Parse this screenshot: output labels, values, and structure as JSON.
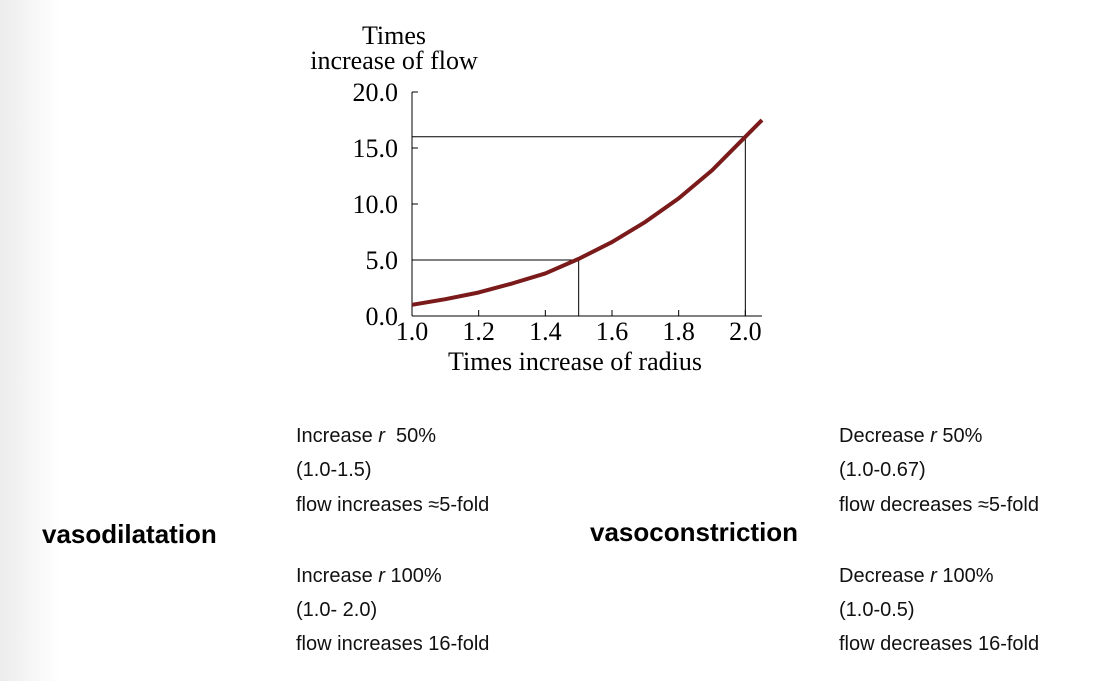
{
  "chart_data": {
    "type": "line",
    "y_label_lines": [
      "Times",
      "increase of flow"
    ],
    "x_label": "Times increase of radius",
    "x": [
      1.0,
      1.1,
      1.2,
      1.3,
      1.4,
      1.5,
      1.6,
      1.7,
      1.8,
      1.9,
      2.0,
      2.05
    ],
    "series": [
      {
        "color": "#7a1a1a",
        "values": [
          1.0,
          1.5,
          2.1,
          2.9,
          3.8,
          5.1,
          6.6,
          8.4,
          10.5,
          13.0,
          16.0,
          17.5
        ]
      }
    ],
    "xlim": [
      1.0,
      2.05
    ],
    "ylim": [
      0,
      20
    ],
    "xticks": [
      {
        "value": 1.0,
        "label": "1.0"
      },
      {
        "value": 1.2,
        "label": "1.2"
      },
      {
        "value": 1.4,
        "label": "1.4"
      },
      {
        "value": 1.6,
        "label": "1.6"
      },
      {
        "value": 1.8,
        "label": "1.8"
      },
      {
        "value": 2.0,
        "label": "2.0"
      }
    ],
    "yticks": [
      {
        "value": 0,
        "label": "0.0"
      },
      {
        "value": 5,
        "label": "5.0"
      },
      {
        "value": 10,
        "label": "10.0"
      },
      {
        "value": 15,
        "label": "15.0"
      },
      {
        "value": 20,
        "label": "20.0"
      }
    ],
    "reference_points": [
      {
        "x": 1.5,
        "y": 5
      },
      {
        "x": 2.0,
        "y": 16
      }
    ]
  },
  "panels": [
    {
      "heading": "vasodilatation",
      "lines": [
        [
          "Increase ",
          "r",
          "  50%"
        ],
        [
          "(1.0-1.5)"
        ],
        [
          "flow increases ≈5-fold"
        ],
        [
          "Increase ",
          "r",
          " 100%"
        ],
        [
          "(1.0- 2.0)"
        ],
        [
          "flow increases 16-fold"
        ]
      ]
    },
    {
      "heading": "vasoconstriction",
      "lines": [
        [
          "Decrease ",
          "r",
          " 50%"
        ],
        [
          "(1.0-0.67)"
        ],
        [
          "flow decreases ≈5-fold"
        ],
        [
          "Decrease ",
          "r",
          " 100%"
        ],
        [
          "(1.0-0.5)"
        ],
        [
          "flow decreases 16-fold"
        ]
      ]
    }
  ]
}
